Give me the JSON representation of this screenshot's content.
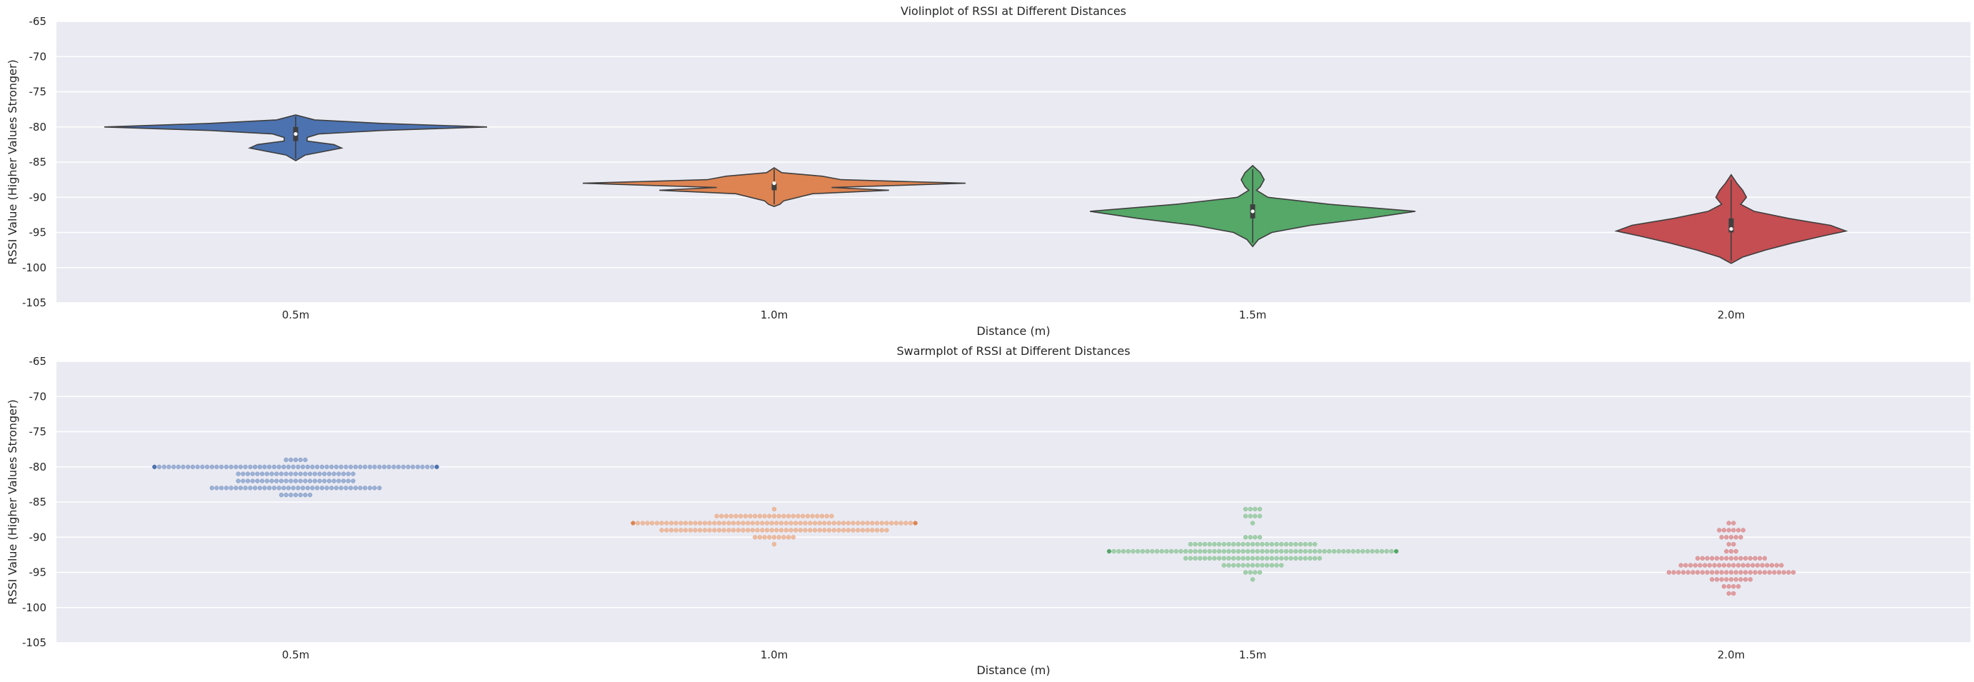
{
  "chart_data": [
    {
      "type": "violin",
      "title": "Violinplot of RSSI at Different Distances",
      "xlabel": "Distance (m)",
      "ylabel": "RSSI Value (Higher Values Stronger)",
      "ylim": [
        -105,
        -65
      ],
      "yticks": [
        -65,
        -70,
        -75,
        -80,
        -85,
        -90,
        -95,
        -100,
        -105
      ],
      "categories": [
        "0.5m",
        "1.0m",
        "1.5m",
        "2.0m"
      ],
      "grid": true,
      "series": [
        {
          "category": "0.5m",
          "color": "#4c72b0",
          "min": -84.5,
          "max": -78.5,
          "q1": -82,
          "median": -81,
          "q3": -80,
          "density": [
            [
              -84.8,
              0
            ],
            [
              -84,
              0.05
            ],
            [
              -83,
              0.24
            ],
            [
              -82.5,
              0.2
            ],
            [
              -82,
              0.06
            ],
            [
              -81.5,
              0.06
            ],
            [
              -81,
              0.12
            ],
            [
              -80.5,
              0.45
            ],
            [
              -80,
              1.0
            ],
            [
              -79.5,
              0.45
            ],
            [
              -79,
              0.1
            ],
            [
              -78.3,
              0
            ]
          ]
        },
        {
          "category": "1.0m",
          "color": "#dd8452",
          "min": -91,
          "max": -86,
          "q1": -89,
          "median": -88,
          "q3": -88,
          "density": [
            [
              -91.3,
              0
            ],
            [
              -91,
              0.03
            ],
            [
              -90.5,
              0.05
            ],
            [
              -89.5,
              0.2
            ],
            [
              -89,
              0.6
            ],
            [
              -88.6,
              0.3
            ],
            [
              -88,
              1.0
            ],
            [
              -87.5,
              0.35
            ],
            [
              -87,
              0.25
            ],
            [
              -86.5,
              0.04
            ],
            [
              -85.8,
              0
            ]
          ]
        },
        {
          "category": "1.5m",
          "color": "#55a868",
          "min": -96.5,
          "max": -86,
          "q1": -93,
          "median": -92,
          "q3": -91,
          "density": [
            [
              -97,
              0
            ],
            [
              -96,
              0.03
            ],
            [
              -95,
              0.1
            ],
            [
              -94,
              0.3
            ],
            [
              -93,
              0.6
            ],
            [
              -92,
              0.85
            ],
            [
              -91,
              0.4
            ],
            [
              -90,
              0.08
            ],
            [
              -89,
              0.02
            ],
            [
              -88.5,
              0.04
            ],
            [
              -87.5,
              0.06
            ],
            [
              -86.5,
              0.04
            ],
            [
              -85.5,
              0
            ]
          ]
        },
        {
          "category": "2.0m",
          "color": "#c44e52",
          "min": -99,
          "max": -87.5,
          "q1": -95,
          "median": -94.5,
          "q3": -93,
          "density": [
            [
              -99.4,
              0
            ],
            [
              -98.5,
              0.06
            ],
            [
              -97.5,
              0.18
            ],
            [
              -96.5,
              0.32
            ],
            [
              -95.5,
              0.48
            ],
            [
              -94.8,
              0.6
            ],
            [
              -94,
              0.52
            ],
            [
              -93,
              0.3
            ],
            [
              -92,
              0.12
            ],
            [
              -91,
              0.05
            ],
            [
              -90,
              0.08
            ],
            [
              -89,
              0.06
            ],
            [
              -88,
              0.03
            ],
            [
              -86.8,
              0
            ]
          ]
        }
      ]
    },
    {
      "type": "swarm",
      "title": "Swarmplot of RSSI at Different Distances",
      "xlabel": "Distance (m)",
      "ylabel": "RSSI Value (Higher Values Stronger)",
      "ylim": [
        -105,
        -65
      ],
      "yticks": [
        -65,
        -70,
        -75,
        -80,
        -85,
        -90,
        -95,
        -100,
        -105
      ],
      "categories": [
        "0.5m",
        "1.0m",
        "1.5m",
        "2.0m"
      ],
      "grid": true,
      "series": [
        {
          "category": "0.5m",
          "color": "#4c72b0",
          "counts": [
            [
              -79,
              5
            ],
            [
              -80,
              60
            ],
            [
              -81,
              25
            ],
            [
              -82,
              25
            ],
            [
              -83,
              36
            ],
            [
              -84,
              7
            ]
          ]
        },
        {
          "category": "1.0m",
          "color": "#dd8452",
          "counts": [
            [
              -86,
              1
            ],
            [
              -87,
              25
            ],
            [
              -88,
              60
            ],
            [
              -89,
              48
            ],
            [
              -90,
              9
            ],
            [
              -91,
              1
            ]
          ]
        },
        {
          "category": "1.5m",
          "color": "#55a868",
          "counts": [
            [
              -86,
              4
            ],
            [
              -87,
              4
            ],
            [
              -88,
              1
            ],
            [
              -90,
              4
            ],
            [
              -91,
              27
            ],
            [
              -92,
              61
            ],
            [
              -93,
              29
            ],
            [
              -94,
              13
            ],
            [
              -95,
              4
            ],
            [
              -96,
              1
            ]
          ]
        },
        {
          "category": "2.0m",
          "color": "#c44e52",
          "counts": [
            [
              -88,
              2
            ],
            [
              -89,
              6
            ],
            [
              -90,
              5
            ],
            [
              -91,
              2
            ],
            [
              -92,
              3
            ],
            [
              -93,
              15
            ],
            [
              -94,
              22
            ],
            [
              -95,
              27
            ],
            [
              -96,
              9
            ],
            [
              -97,
              4
            ],
            [
              -98,
              2
            ]
          ]
        }
      ]
    }
  ]
}
